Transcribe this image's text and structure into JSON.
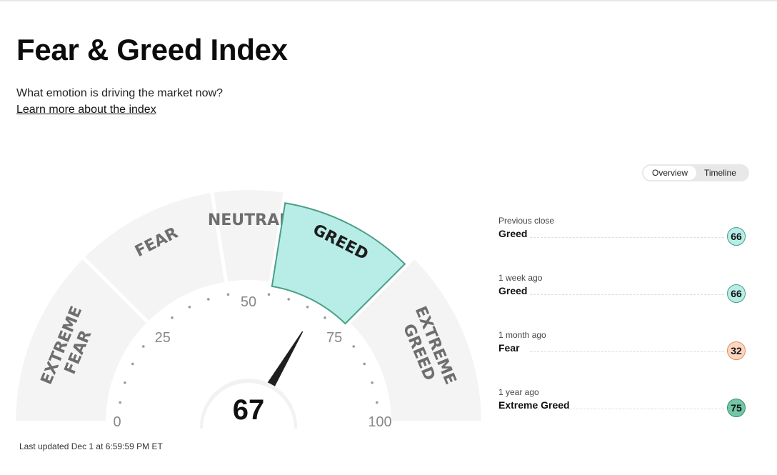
{
  "header": {
    "title": "Fear & Greed Index",
    "subtitle": "What emotion is driving the market now?",
    "learn_link": "Learn more about the index"
  },
  "view_toggle": {
    "options": [
      "Overview",
      "Timeline"
    ],
    "selected": "Overview"
  },
  "gauge": {
    "value": 67,
    "value_label": "67",
    "scale_min": 0,
    "scale_max": 100,
    "tick_labels": [
      "0",
      "25",
      "50",
      "75",
      "100"
    ],
    "segments": [
      {
        "label_lines": [
          "EXTREME",
          "FEAR"
        ],
        "from": 0,
        "to": 25
      },
      {
        "label_lines": [
          "FEAR"
        ],
        "from": 25,
        "to": 45
      },
      {
        "label_lines": [
          "NEUTRAL"
        ],
        "from": 45,
        "to": 55
      },
      {
        "label_lines": [
          "GREED"
        ],
        "from": 55,
        "to": 75,
        "active": true
      },
      {
        "label_lines": [
          "EXTREME",
          "GREED"
        ],
        "from": 75,
        "to": 100
      }
    ],
    "colors": {
      "segment": "#f4f4f4",
      "active_fill": "#b8ede7",
      "active_stroke": "#4a9e86",
      "label": "#6e6e6e",
      "active_label": "#1d1d1d",
      "needle": "#1f1f1f",
      "dots": "#9a9a9a",
      "ticks": "#888888"
    },
    "last_updated": "Last updated Dec 1 at 6:59:59 PM ET"
  },
  "history": [
    {
      "label": "Previous close",
      "rating": "Greed",
      "value": "66",
      "tone": "greed"
    },
    {
      "label": "1 week ago",
      "rating": "Greed",
      "value": "66",
      "tone": "greed"
    },
    {
      "label": "1 month ago",
      "rating": "Fear",
      "value": "32",
      "tone": "fear"
    },
    {
      "label": "1 year ago",
      "rating": "Extreme Greed",
      "value": "75",
      "tone": "xgreed"
    }
  ]
}
